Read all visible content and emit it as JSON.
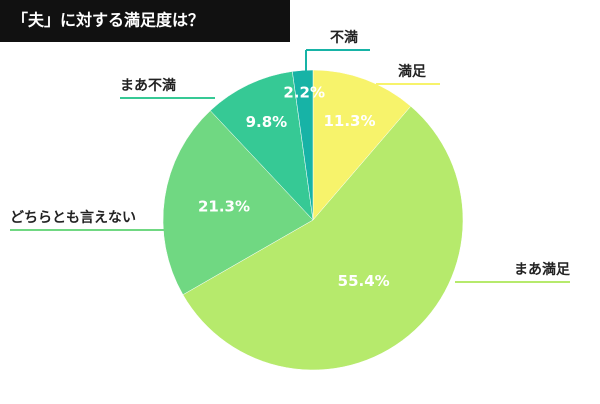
{
  "chart_data": {
    "type": "pie",
    "title": "「夫」に対する満足度は？",
    "categories": [
      "満足",
      "まあ満足",
      "どちらとも言えない",
      "まあ不満",
      "不満"
    ],
    "values": [
      11.3,
      55.4,
      21.3,
      9.8,
      2.2
    ],
    "value_labels": [
      "11.3%",
      "55.4%",
      "21.3%",
      "9.8%",
      "2.2%"
    ],
    "colors": [
      "#f7f36b",
      "#b6ea6c",
      "#70d882",
      "#36c995",
      "#17b3a6"
    ]
  }
}
